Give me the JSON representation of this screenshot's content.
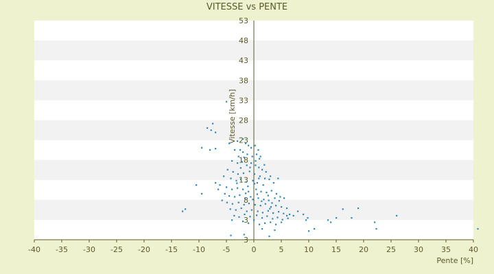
{
  "chart_data": {
    "type": "scatter",
    "title": "VITESSE vs PENTE",
    "xlabel": "Pente [%]",
    "ylabel": "Vitesse [km/h]",
    "xlim": [
      -40,
      40
    ],
    "ylim": [
      3,
      53
    ],
    "x_ticks": [
      "-40",
      "-35",
      "-30",
      "-25",
      "-20",
      "-15",
      "-10",
      "-5",
      "0",
      "5",
      "10",
      "15",
      "20",
      "25",
      "30",
      "35",
      "40"
    ],
    "y_ticks": [
      "53",
      "48",
      "43",
      "38",
      "33",
      "28",
      "23",
      "18",
      "13",
      "8",
      "3",
      "3"
    ],
    "grid": "horizontal-bands",
    "legend": "none",
    "colors": {
      "background": "#eef2cf",
      "band_light": "#ffffff",
      "band_dark": "#f2f2f2",
      "marker": "#2e86c1",
      "axis": "#5a5a2a"
    },
    "points": [
      [
        -5,
        34.5
      ],
      [
        -7.5,
        29.5
      ],
      [
        -8.5,
        28.5
      ],
      [
        -7.8,
        28
      ],
      [
        -7,
        27.5
      ],
      [
        -9.5,
        24
      ],
      [
        -8,
        23.5
      ],
      [
        -7,
        23.8
      ],
      [
        -4.5,
        25
      ],
      [
        -3,
        25.5
      ],
      [
        -2,
        26
      ],
      [
        -1.5,
        25
      ],
      [
        -1,
        24.5
      ],
      [
        -0.5,
        24
      ],
      [
        0.2,
        24.5
      ],
      [
        0.8,
        23.5
      ],
      [
        1.2,
        22
      ],
      [
        -3.5,
        23.5
      ],
      [
        -2.5,
        23.5
      ],
      [
        -2,
        23
      ],
      [
        -1.2,
        22.5
      ],
      [
        -0.3,
        22
      ],
      [
        0.5,
        22.5
      ],
      [
        1,
        21.5
      ],
      [
        -2.8,
        22
      ],
      [
        -1.8,
        21.8
      ],
      [
        -4,
        21
      ],
      [
        -3,
        20.5
      ],
      [
        -2.2,
        20.8
      ],
      [
        -1.3,
        20
      ],
      [
        -0.5,
        20.5
      ],
      [
        0.3,
        20
      ],
      [
        0.9,
        19.5
      ],
      [
        1.5,
        19
      ],
      [
        2.2,
        18.5
      ],
      [
        -4.8,
        19
      ],
      [
        -3.8,
        18.5
      ],
      [
        -2.9,
        18
      ],
      [
        -1.9,
        18.2
      ],
      [
        -0.8,
        18.6
      ],
      [
        0.1,
        18
      ],
      [
        1.1,
        17.5
      ],
      [
        2,
        17
      ],
      [
        2.8,
        16.8
      ],
      [
        -5.5,
        17.5
      ],
      [
        -4.2,
        17
      ],
      [
        -3.2,
        16.5
      ],
      [
        -2.4,
        16.8
      ],
      [
        -1.4,
        16.2
      ],
      [
        -0.2,
        16.5
      ],
      [
        0.6,
        16
      ],
      [
        1.7,
        15.5
      ],
      [
        3,
        17.5
      ],
      [
        3.6,
        16
      ],
      [
        4.4,
        17
      ],
      [
        -6.2,
        15.5
      ],
      [
        -5,
        15
      ],
      [
        -4,
        14.5
      ],
      [
        -3,
        14.8
      ],
      [
        -2,
        14.5
      ],
      [
        -1,
        14
      ],
      [
        0.4,
        14.5
      ],
      [
        1.3,
        14
      ],
      [
        2.3,
        13.8
      ],
      [
        3.2,
        14.2
      ],
      [
        4.1,
        13.5
      ],
      [
        -7,
        16
      ],
      [
        -6.5,
        14.5
      ],
      [
        -5.3,
        13.5
      ],
      [
        -4.5,
        13
      ],
      [
        -3.5,
        12.8
      ],
      [
        -2.6,
        13.2
      ],
      [
        -1.6,
        12.5
      ],
      [
        -0.6,
        12.8
      ],
      [
        0.8,
        12.5
      ],
      [
        1.8,
        12.2
      ],
      [
        2.7,
        12
      ],
      [
        3.8,
        12.5
      ],
      [
        4.8,
        12.8
      ],
      [
        5.5,
        12.5
      ],
      [
        -5.8,
        12
      ],
      [
        -4.9,
        11.5
      ],
      [
        -3.9,
        11.2
      ],
      [
        -2.8,
        11.5
      ],
      [
        -1.8,
        11
      ],
      [
        -0.9,
        11.3
      ],
      [
        0.2,
        11
      ],
      [
        1.2,
        10.8
      ],
      [
        2.1,
        11.2
      ],
      [
        3.1,
        10.5
      ],
      [
        4,
        10.8
      ],
      [
        5,
        10.5
      ],
      [
        6,
        10.2
      ],
      [
        -4.3,
        10
      ],
      [
        -3.3,
        9.8
      ],
      [
        -2.3,
        10.2
      ],
      [
        -1.3,
        9.5
      ],
      [
        -0.4,
        9.8
      ],
      [
        0.7,
        9.5
      ],
      [
        1.6,
        9.2
      ],
      [
        2.6,
        9.6
      ],
      [
        3.5,
        9.1
      ],
      [
        4.5,
        9.4
      ],
      [
        5.4,
        9
      ],
      [
        6.5,
        8.8
      ],
      [
        7.2,
        8.5
      ],
      [
        -3.6,
        8.5
      ],
      [
        -2.7,
        8.2
      ],
      [
        -1.7,
        8.8
      ],
      [
        -0.7,
        8.3
      ],
      [
        0.5,
        8.6
      ],
      [
        1.5,
        8
      ],
      [
        2.4,
        8.4
      ],
      [
        3.4,
        7.8
      ],
      [
        4.3,
        8.1
      ],
      [
        5.2,
        7.6
      ],
      [
        6.2,
        7.9
      ],
      [
        -4,
        7.5
      ],
      [
        -2,
        7.2
      ],
      [
        -1,
        6.8
      ],
      [
        0,
        7.5
      ],
      [
        1,
        6.5
      ],
      [
        2,
        6.8
      ],
      [
        3,
        7
      ],
      [
        4,
        6.5
      ],
      [
        5,
        7
      ],
      [
        6,
        8.5
      ],
      [
        -10.5,
        15.5
      ],
      [
        -9.5,
        13.5
      ],
      [
        -13,
        9.5
      ],
      [
        -12.5,
        10
      ],
      [
        -4.2,
        4
      ],
      [
        -1.8,
        4.2
      ],
      [
        2.8,
        3.8
      ],
      [
        1.5,
        5.5
      ],
      [
        3.8,
        5.2
      ],
      [
        10,
        5
      ],
      [
        11,
        5.5
      ],
      [
        9.5,
        7.5
      ],
      [
        9.8,
        8
      ],
      [
        13.5,
        7.5
      ],
      [
        14,
        7
      ],
      [
        15,
        8
      ],
      [
        16.2,
        10
      ],
      [
        17.8,
        8
      ],
      [
        19,
        10.2
      ],
      [
        22,
        7
      ],
      [
        22.3,
        5.5
      ],
      [
        26,
        8.5
      ],
      [
        40.8,
        5.5
      ],
      [
        8,
        9.5
      ],
      [
        9,
        8.8
      ],
      [
        0.3,
        21
      ],
      [
        -0.7,
        19.5
      ],
      [
        0.9,
        17
      ],
      [
        -1.1,
        15.2
      ],
      [
        0.1,
        15.8
      ],
      [
        -2.4,
        19.4
      ],
      [
        1.9,
        20.1
      ],
      [
        2.6,
        13.1
      ],
      [
        -3.1,
        15.9
      ],
      [
        0.6,
        13.4
      ],
      [
        1.4,
        11.8
      ],
      [
        -0.2,
        12.2
      ],
      [
        3.3,
        11.4
      ],
      [
        2.9,
        10.1
      ],
      [
        4.6,
        11.9
      ],
      [
        -1.5,
        13.6
      ]
    ]
  }
}
